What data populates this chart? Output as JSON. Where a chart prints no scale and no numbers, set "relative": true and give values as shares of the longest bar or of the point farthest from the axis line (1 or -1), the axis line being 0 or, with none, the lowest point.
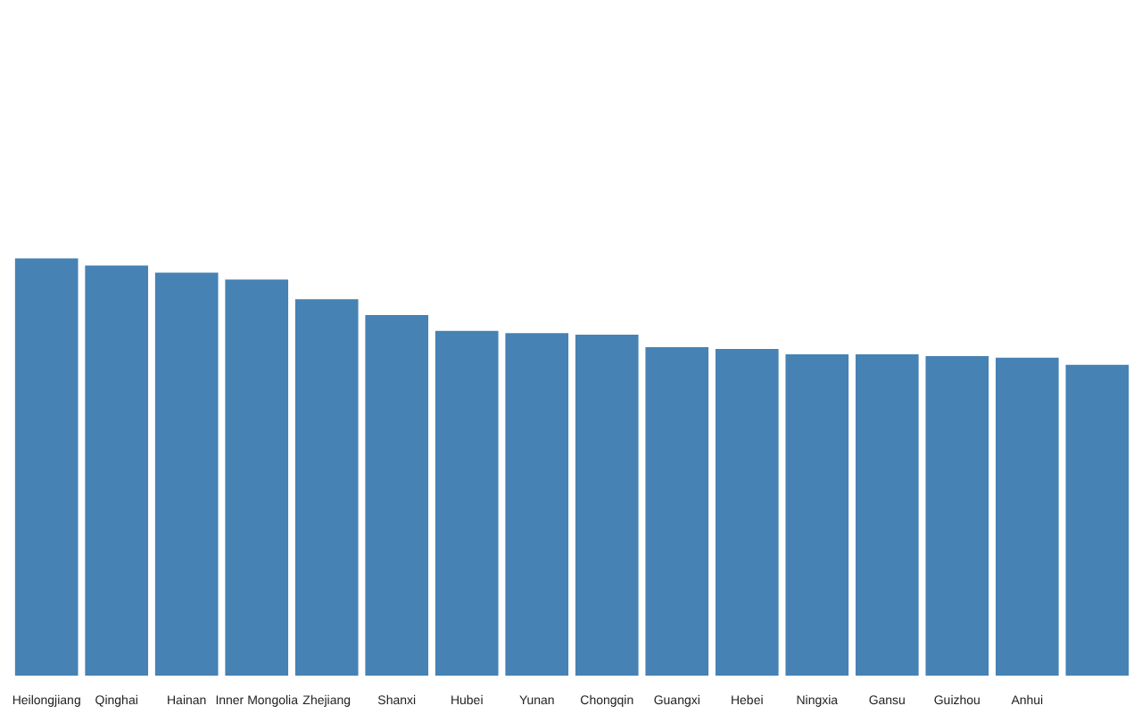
{
  "chart_data": {
    "type": "bar",
    "relative": true,
    "color": "#4682b4",
    "grid": false,
    "categories": [
      "Heilongjiang",
      "Qinghai",
      "Hainan",
      "Inner Mongolia",
      "Zhejiang",
      "Shanxi",
      "Hubei",
      "Yunan",
      "Chongqin",
      "Guangxi",
      "Hebei",
      "Ningxia",
      "Gansu",
      "Guizhou",
      "Anhui",
      null
    ],
    "values": [
      1,
      0.983,
      0.966,
      0.949,
      0.902,
      0.864,
      0.826,
      0.821,
      0.817,
      0.787,
      0.783,
      0.77,
      0.77,
      0.766,
      0.762,
      0.745
    ]
  }
}
